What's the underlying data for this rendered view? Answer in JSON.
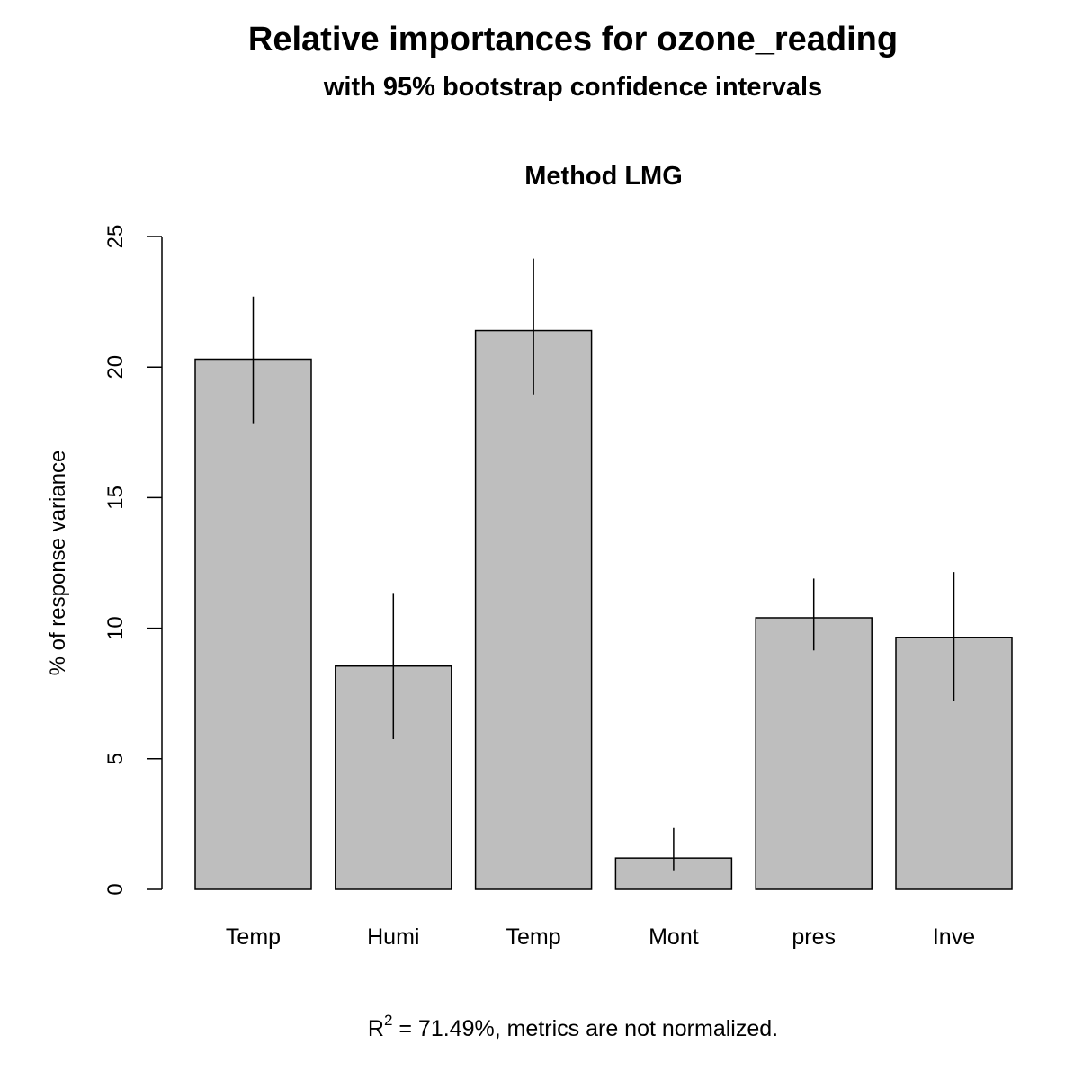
{
  "chart_data": {
    "type": "bar",
    "title": "Relative importances for ozone_reading",
    "subtitle": "with 95% bootstrap confidence intervals",
    "panel_title": "Method LMG",
    "xlabel": "",
    "ylabel": "% of response variance",
    "ylim": [
      0,
      25
    ],
    "yticks": [
      0,
      5,
      10,
      15,
      20,
      25
    ],
    "categories": [
      "Temp",
      "Humi",
      "Temp",
      "Mont",
      "pres",
      "Inve"
    ],
    "values": [
      20.3,
      8.55,
      21.4,
      1.2,
      10.4,
      9.65
    ],
    "ci_lower": [
      17.85,
      5.75,
      18.95,
      0.7,
      9.15,
      7.2
    ],
    "ci_upper": [
      22.7,
      11.35,
      24.15,
      2.35,
      11.9,
      12.15
    ],
    "footnote_prefix": "R",
    "footnote_superscript": "2",
    "footnote": " = 71.49%, metrics are not normalized.",
    "bar_color": "#bebebe",
    "grid": false
  }
}
